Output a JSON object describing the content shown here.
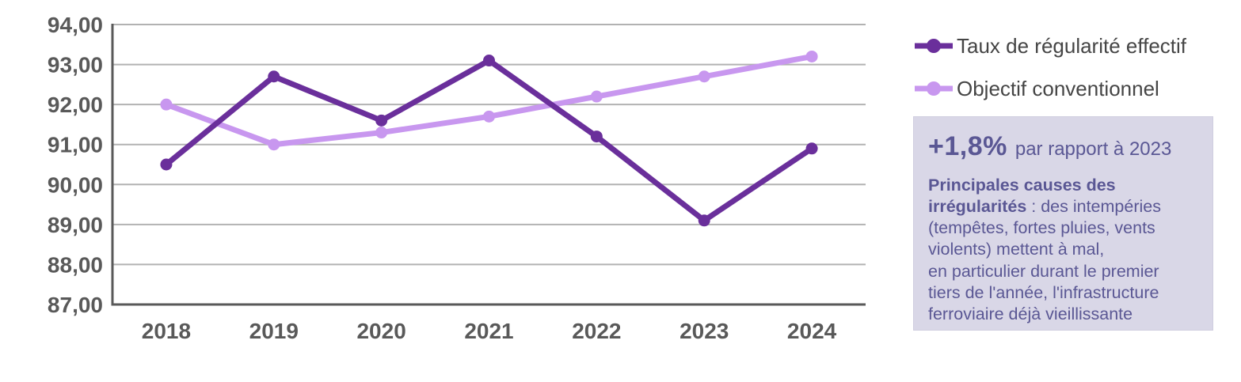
{
  "chart_data": {
    "type": "line",
    "categories": [
      "2018",
      "2019",
      "2020",
      "2021",
      "2022",
      "2023",
      "2024"
    ],
    "series": [
      {
        "name": "Taux de régularité effectif",
        "values": [
          90.5,
          92.7,
          91.6,
          93.1,
          91.2,
          89.1,
          90.9
        ],
        "color": "#6a2f9b",
        "marker": "circle"
      },
      {
        "name": "Objectif conventionnel",
        "values": [
          92.0,
          91.0,
          91.3,
          91.7,
          92.2,
          92.7,
          93.2
        ],
        "color": "#c897ef",
        "marker": "circle"
      }
    ],
    "ylim": [
      87,
      94
    ],
    "y_ticks": [
      {
        "value": 87,
        "label": "87,00"
      },
      {
        "value": 88,
        "label": "88,00"
      },
      {
        "value": 89,
        "label": "89,00"
      },
      {
        "value": 90,
        "label": "90,00"
      },
      {
        "value": 91,
        "label": "91,00"
      },
      {
        "value": 92,
        "label": "92,00"
      },
      {
        "value": 93,
        "label": "93,00"
      },
      {
        "value": 94,
        "label": "94,00"
      }
    ],
    "grid": true,
    "grid_color": "#b2b2b2",
    "axis_color": "#595959",
    "legend_position": "right-top"
  },
  "note": {
    "delta": "+1,8%",
    "delta_suffix": "par rapport à 2023",
    "causes_heading": "Principales causes des\nirrégularités",
    "causes_body": " : des intempéries\n(tempêtes, fortes pluies, vents\nviolents) mettent à mal,\nen particulier durant le premier\ntiers de l'année, l'infrastructure\nferroviaire déjà vieillissante",
    "background_color": "#d9d7e7",
    "text_color": "#5a5794"
  }
}
